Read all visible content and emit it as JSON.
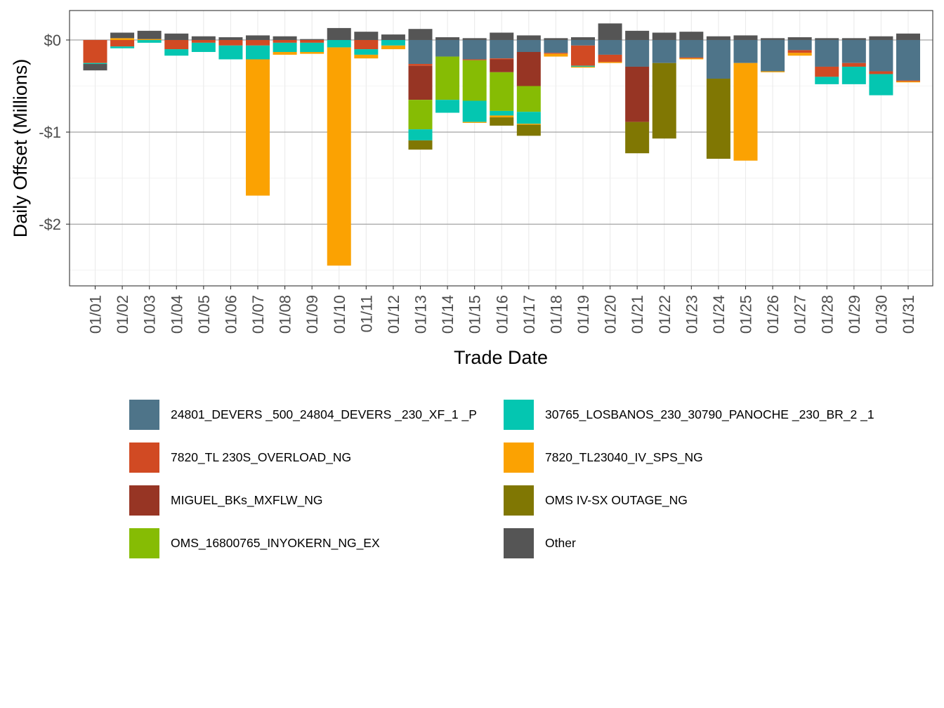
{
  "chart_data": {
    "type": "bar",
    "stacked": true,
    "title": "",
    "xlabel": "Trade Date",
    "ylabel": "Daily Offset (Millions)",
    "ylim": [
      -2.67,
      0.32
    ],
    "yticks": [
      0,
      -1,
      -2
    ],
    "ytick_labels": [
      "$0",
      "-$1",
      "-$2"
    ],
    "grid": true,
    "legend_position": "bottom",
    "categories": [
      "01/01",
      "01/02",
      "01/03",
      "01/04",
      "01/05",
      "01/06",
      "01/07",
      "01/08",
      "01/09",
      "01/10",
      "01/11",
      "01/12",
      "01/13",
      "01/14",
      "01/15",
      "01/16",
      "01/17",
      "01/18",
      "01/19",
      "01/20",
      "01/21",
      "01/22",
      "01/23",
      "01/24",
      "01/25",
      "01/26",
      "01/27",
      "01/28",
      "01/29",
      "01/30",
      "01/31"
    ],
    "series": [
      {
        "name": "24801_DEVERS  _500_24804_DEVERS  _230_XF_1 _P",
        "color": "#4e7489",
        "values": [
          0,
          0,
          0,
          0,
          0,
          0,
          0,
          0,
          0,
          0,
          0,
          0,
          -0.26,
          -0.18,
          -0.21,
          -0.2,
          -0.13,
          -0.14,
          -0.06,
          -0.16,
          -0.29,
          -0.25,
          -0.19,
          -0.42,
          -0.25,
          -0.34,
          -0.11,
          -0.29,
          -0.25,
          -0.34,
          -0.44
        ]
      },
      {
        "name": "7820_TL 230S_OVERLOAD_NG",
        "color": "#d14a23",
        "values": [
          -0.25,
          -0.07,
          0,
          -0.1,
          -0.03,
          -0.06,
          -0.06,
          -0.03,
          -0.03,
          0,
          -0.1,
          0,
          -0.02,
          0,
          -0.01,
          -0.01,
          0,
          -0.01,
          -0.22,
          -0.08,
          0,
          0,
          -0.01,
          0,
          0,
          0,
          -0.03,
          -0.11,
          -0.04,
          -0.03,
          -0.01
        ]
      },
      {
        "name": "MIGUEL_BKs_MXFLW_NG",
        "color": "#973524",
        "values": [
          0,
          0,
          0,
          0,
          0,
          0,
          0,
          0,
          0,
          0,
          0,
          0,
          -0.37,
          0,
          0,
          -0.14,
          -0.37,
          0,
          0,
          0,
          -0.6,
          0,
          0,
          0,
          0,
          0,
          0,
          0,
          0,
          0,
          0
        ]
      },
      {
        "name": "OMS_16800765_INYOKERN_NG_EX",
        "color": "#86bc04",
        "values": [
          0,
          0,
          0,
          0,
          0,
          0,
          0,
          0,
          0,
          0,
          0,
          0,
          -0.32,
          -0.47,
          -0.44,
          -0.42,
          -0.28,
          0,
          0,
          0,
          0,
          0,
          0,
          0,
          0,
          0,
          0,
          0,
          0,
          0,
          0
        ]
      },
      {
        "name": "30765_LOSBANOS_230_30790_PANOCHE _230_BR_2 _1",
        "color": "#04c6b1",
        "values": [
          -0.01,
          -0.02,
          -0.03,
          -0.07,
          -0.1,
          -0.15,
          -0.15,
          -0.1,
          -0.1,
          -0.08,
          -0.06,
          -0.06,
          -0.12,
          -0.14,
          -0.23,
          -0.05,
          -0.13,
          0,
          -0.01,
          0,
          0,
          0,
          0,
          0,
          0,
          0,
          0,
          -0.08,
          -0.19,
          -0.23,
          0
        ]
      },
      {
        "name": "7820_TL23040_IV_SPS_NG",
        "color": "#fba202",
        "values": [
          0,
          0.02,
          0.01,
          0,
          0,
          0,
          -1.48,
          -0.03,
          -0.02,
          -2.37,
          -0.04,
          -0.04,
          0,
          0,
          -0.01,
          -0.02,
          -0.01,
          -0.03,
          -0.01,
          -0.01,
          0,
          0,
          -0.01,
          0,
          -1.06,
          -0.01,
          -0.03,
          0,
          0,
          0,
          -0.01
        ]
      },
      {
        "name": "OMS IV-SX OUTAGE_NG",
        "color": "#807703",
        "values": [
          0,
          0,
          0,
          0,
          0,
          0,
          0,
          0,
          0,
          0,
          0,
          0,
          -0.1,
          0,
          0,
          -0.09,
          -0.12,
          0,
          0,
          0,
          -0.34,
          -0.82,
          0,
          -0.87,
          0,
          0,
          0,
          0,
          0,
          0,
          0
        ]
      },
      {
        "name": "Other",
        "color": "#555555",
        "values": [
          -0.07,
          0.06,
          0.09,
          0.07,
          0.04,
          0.03,
          0.05,
          0.04,
          0.01,
          0.13,
          0.09,
          0.06,
          0.12,
          0.03,
          0.02,
          0.08,
          0.05,
          0.02,
          0.03,
          0.18,
          0.1,
          0.08,
          0.09,
          0.04,
          0.05,
          0.02,
          0.03,
          0.02,
          0.02,
          0.04,
          0.07
        ]
      }
    ]
  }
}
